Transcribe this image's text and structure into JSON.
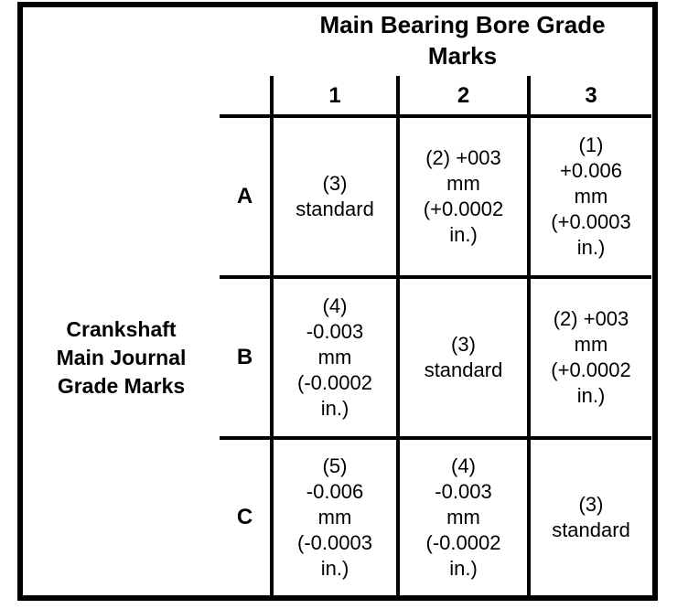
{
  "table": {
    "column_group_header": "Main Bearing Bore Grade\nMarks",
    "row_group_header": "Crankshaft\nMain Journal\nGrade Marks",
    "column_labels": [
      "1",
      "2",
      "3"
    ],
    "row_labels": [
      "A",
      "B",
      "C"
    ],
    "cells": [
      [
        "(3)\nstandard",
        "(2) +003\nmm\n(+0.0002\nin.)",
        "(1)\n+0.006\nmm\n(+0.0003\nin.)"
      ],
      [
        "(4)\n-0.003\nmm\n(-0.0002\nin.)",
        "(3)\nstandard",
        "(2) +003\nmm\n(+0.0002\nin.)"
      ],
      [
        "(5)\n-0.006\nmm\n(-0.0003\nin.)",
        "(4)\n-0.003\nmm\n(-0.0002\nin.)",
        "(3)\nstandard"
      ]
    ],
    "colors": {
      "line": "#000000",
      "text": "#000000",
      "background": "#ffffff"
    }
  }
}
